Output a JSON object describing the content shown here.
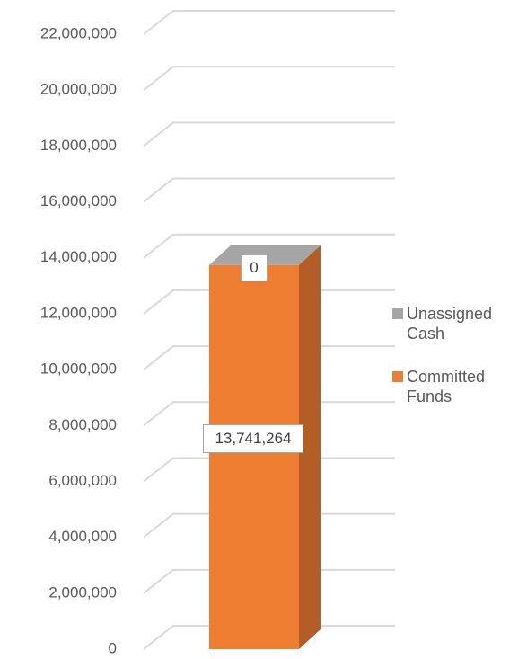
{
  "chart_data": {
    "type": "bar3d_stacked",
    "categories": [
      null
    ],
    "series": [
      {
        "name": "Committed Funds",
        "color": "#ED7D31",
        "values": [
          13741264
        ],
        "value_labels": [
          "13,741,264"
        ]
      },
      {
        "name": "Unassigned Cash",
        "color": "#A5A5A5",
        "values": [
          0
        ]
      }
    ],
    "ylim": [
      0,
      22000000
    ],
    "yticks": [
      {
        "value": 0,
        "label": "0"
      },
      {
        "value": 2000000,
        "label": "2,000,000"
      },
      {
        "value": 4000000,
        "label": "4,000,000"
      },
      {
        "value": 6000000,
        "label": "6,000,000"
      },
      {
        "value": 8000000,
        "label": "8,000,000"
      },
      {
        "value": 10000000,
        "label": "10,000,000"
      },
      {
        "value": 12000000,
        "label": "12,000,000"
      },
      {
        "value": 14000000,
        "label": "14,000,000"
      },
      {
        "value": 16000000,
        "label": "16,000,000"
      },
      {
        "value": 18000000,
        "label": "18,000,000"
      },
      {
        "value": 20000000,
        "label": "20,000,000"
      },
      {
        "value": 22000000,
        "label": "22,000,000"
      }
    ],
    "grid": true,
    "legend": "right"
  }
}
